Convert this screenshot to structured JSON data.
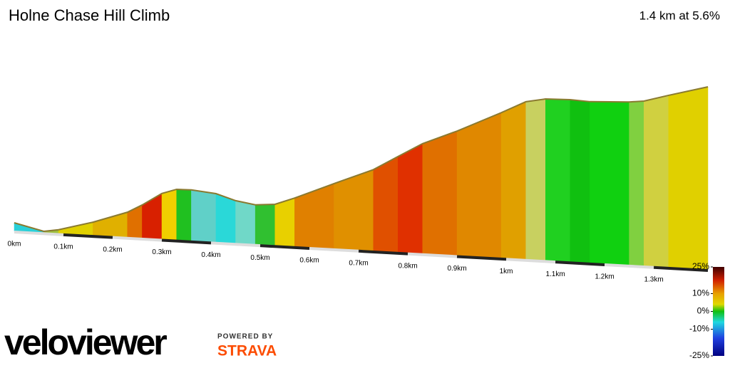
{
  "chart_data": {
    "type": "area",
    "title": "Holne Chase Hill Climb",
    "subtitle": "1.4 km at 5.6%",
    "x": [
      0,
      0.06,
      0.09,
      0.16,
      0.23,
      0.26,
      0.3,
      0.33,
      0.36,
      0.41,
      0.45,
      0.49,
      0.53,
      0.57,
      0.65,
      0.73,
      0.78,
      0.83,
      0.9,
      0.99,
      1.04,
      1.08,
      1.13,
      1.17,
      1.25,
      1.28,
      1.33,
      1.41
    ],
    "series": [
      {
        "values": [
          3.6,
          0.7,
          1.7,
          5.7,
          10.7,
          14.1,
          19.4,
          21.5,
          21.6,
          20.6,
          18.1,
          16.8,
          17.5,
          20.6,
          27.6,
          34.4,
          40.5,
          46.5,
          52.6,
          61.4,
          66.6,
          68.2,
          68.5,
          68.1,
          68.9,
          69.6,
          72.6,
          77.1
        ],
        "segment_colors": [
          "#2ad0d8",
          "#a0c040",
          "#e0d000",
          "#e0b000",
          "#e07000",
          "#d82000",
          "#f0d000",
          "#20c020",
          "#60d0c8",
          "#2ad8d8",
          "#70d8c8",
          "#30c030",
          "#e8d000",
          "#e08000",
          "#e09000",
          "#e05000",
          "#e03000",
          "#e07000",
          "#e08800",
          "#e0a000",
          "#c8d060",
          "#20d020",
          "#10c010",
          "#10d010",
          "#80d040",
          "#d0d040",
          "#e0d000"
        ]
      }
    ],
    "xlim": [
      0,
      1.41
    ],
    "xticks": [
      {
        "value": 0,
        "label": "0km"
      },
      {
        "value": 0.1,
        "label": "0.1km"
      },
      {
        "value": 0.2,
        "label": "0.2km"
      },
      {
        "value": 0.3,
        "label": "0.3km"
      },
      {
        "value": 0.4,
        "label": "0.4km"
      },
      {
        "value": 0.5,
        "label": "0.5km"
      },
      {
        "value": 0.6,
        "label": "0.6km"
      },
      {
        "value": 0.7,
        "label": "0.7km"
      },
      {
        "value": 0.8,
        "label": "0.8km"
      },
      {
        "value": 0.9,
        "label": "0.9km"
      },
      {
        "value": 1,
        "label": "1km"
      },
      {
        "value": 1.1,
        "label": "1.1km"
      },
      {
        "value": 1.2,
        "label": "1.2km"
      },
      {
        "value": 1.3,
        "label": "1.3km"
      }
    ],
    "gradient_scale": {
      "lim": [
        -25,
        25
      ],
      "ticks": [
        {
          "value": 25,
          "label": "25%"
        },
        {
          "value": 10,
          "label": "10%"
        },
        {
          "value": 0,
          "label": "0%"
        },
        {
          "value": -10,
          "label": "-10%"
        },
        {
          "value": -25,
          "label": "-25%"
        }
      ]
    }
  },
  "branding": {
    "logo": "veloviewer",
    "powered_by": "POWERED BY",
    "strava": "STRAVA"
  }
}
